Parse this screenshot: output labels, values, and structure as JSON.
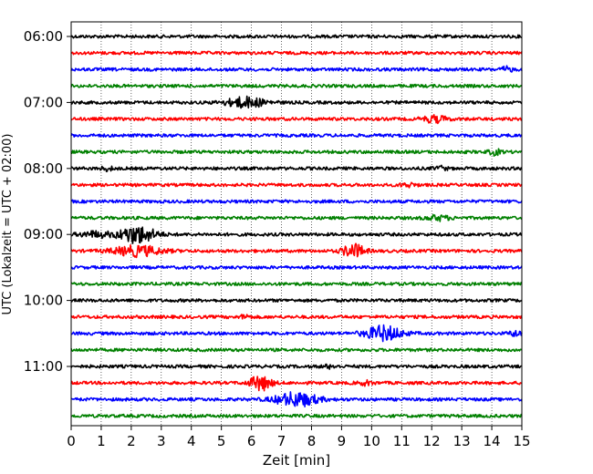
{
  "chart_data": {
    "type": "line",
    "title": "",
    "xlabel": "Zeit  [min]",
    "ylabel": "UTC (Lokalzeit = UTC + 02:00)",
    "xlim": [
      0,
      15
    ],
    "x_ticks": [
      0,
      1,
      2,
      3,
      4,
      5,
      6,
      7,
      8,
      9,
      10,
      11,
      12,
      13,
      14,
      15
    ],
    "y_ticks": [
      "06:00",
      "07:00",
      "08:00",
      "09:00",
      "10:00",
      "11:00"
    ],
    "trace_interval_min": 15,
    "first_trace": "06:00",
    "grid": "vertical dotted lines at each minute",
    "legend": "none",
    "color_cycle": [
      "#000000",
      "#ff0000",
      "#0000ff",
      "#008000"
    ],
    "traces": [
      {
        "start": "06:00",
        "events": []
      },
      {
        "start": "06:15",
        "events": []
      },
      {
        "start": "06:30",
        "events": [
          {
            "t": 14.5,
            "amp": 0.25,
            "dur": 0.4
          }
        ]
      },
      {
        "start": "06:45",
        "events": []
      },
      {
        "start": "07:00",
        "events": [
          {
            "t": 5.8,
            "amp": 0.55,
            "dur": 1.3
          }
        ]
      },
      {
        "start": "07:15",
        "events": [
          {
            "t": 12.1,
            "amp": 0.35,
            "dur": 0.8
          }
        ]
      },
      {
        "start": "07:30",
        "events": []
      },
      {
        "start": "07:45",
        "events": [
          {
            "t": 14.1,
            "amp": 0.3,
            "dur": 0.4
          }
        ]
      },
      {
        "start": "08:00",
        "events": [
          {
            "t": 1.2,
            "amp": 0.2,
            "dur": 0.4
          },
          {
            "t": 12.3,
            "amp": 0.2,
            "dur": 0.4
          }
        ]
      },
      {
        "start": "08:15",
        "events": [
          {
            "t": 11.2,
            "amp": 0.2,
            "dur": 0.5
          }
        ]
      },
      {
        "start": "08:30",
        "events": []
      },
      {
        "start": "08:45",
        "events": [
          {
            "t": 12.2,
            "amp": 0.25,
            "dur": 0.8
          }
        ]
      },
      {
        "start": "09:00",
        "events": [
          {
            "t": 2.2,
            "amp": 0.95,
            "dur": 1.2
          },
          {
            "t": 0.8,
            "amp": 0.3,
            "dur": 1.0
          }
        ]
      },
      {
        "start": "09:15",
        "events": [
          {
            "t": 2.2,
            "amp": 0.55,
            "dur": 1.6
          },
          {
            "t": 9.4,
            "amp": 0.75,
            "dur": 0.7
          }
        ]
      },
      {
        "start": "09:30",
        "events": []
      },
      {
        "start": "09:45",
        "events": []
      },
      {
        "start": "10:00",
        "events": []
      },
      {
        "start": "10:15",
        "events": [
          {
            "t": 5.8,
            "amp": 0.25,
            "dur": 0.3
          }
        ]
      },
      {
        "start": "10:30",
        "events": [
          {
            "t": 10.4,
            "amp": 0.8,
            "dur": 1.2
          },
          {
            "t": 14.8,
            "amp": 0.3,
            "dur": 0.4
          }
        ]
      },
      {
        "start": "10:45",
        "events": []
      },
      {
        "start": "11:00",
        "events": [
          {
            "t": 8.6,
            "amp": 0.15,
            "dur": 0.5
          }
        ]
      },
      {
        "start": "11:15",
        "events": [
          {
            "t": 6.3,
            "amp": 0.8,
            "dur": 0.7
          },
          {
            "t": 9.8,
            "amp": 0.2,
            "dur": 0.5
          }
        ]
      },
      {
        "start": "11:30",
        "events": [
          {
            "t": 7.5,
            "amp": 0.75,
            "dur": 1.4
          }
        ]
      },
      {
        "start": "11:45",
        "events": []
      }
    ]
  }
}
